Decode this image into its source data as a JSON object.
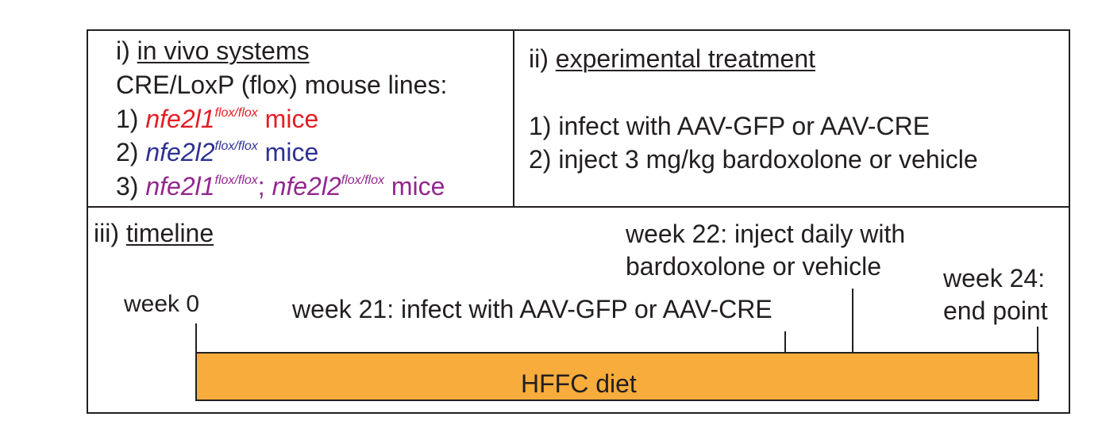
{
  "panel_i": {
    "heading_num": "i)",
    "heading": "in vivo systems",
    "subheading": "CRE/LoxP (flox) mouse lines:",
    "lines": [
      {
        "num": "1)",
        "gene": "nfe2l1",
        "sup": "flox/flox",
        "suffix": "mice"
      },
      {
        "num": "2)",
        "gene": "nfe2l2",
        "sup": "flox/flox",
        "suffix": "mice"
      },
      {
        "num": "3)",
        "gene1": "nfe2l1",
        "sup1": "flox/flox",
        "sep": ";",
        "gene2": "nfe2l2",
        "sup2": "flox/flox",
        "suffix": "mice"
      }
    ],
    "colors": {
      "line1": "#e31e24",
      "line2": "#2e3192",
      "line3": "#92278f"
    }
  },
  "panel_ii": {
    "heading_num": "ii)",
    "heading": "experimental treatment",
    "items": [
      "1) infect with AAV-GFP or AAV-CRE",
      "2) inject 3 mg/kg bardoxolone or vehicle"
    ]
  },
  "panel_iii": {
    "heading_num": "iii)",
    "heading": "timeline",
    "labels": {
      "week0": "week 0",
      "week21": "week 21: infect with AAV-GFP or AAV-CRE",
      "week22_line1": "week 22: inject daily with",
      "week22_line2": "bardoxolone or vehicle",
      "week24_line1": "week 24:",
      "week24_line2": "end point"
    },
    "bar_label": "HFFC diet",
    "bar_color": "#f8ac3c"
  }
}
